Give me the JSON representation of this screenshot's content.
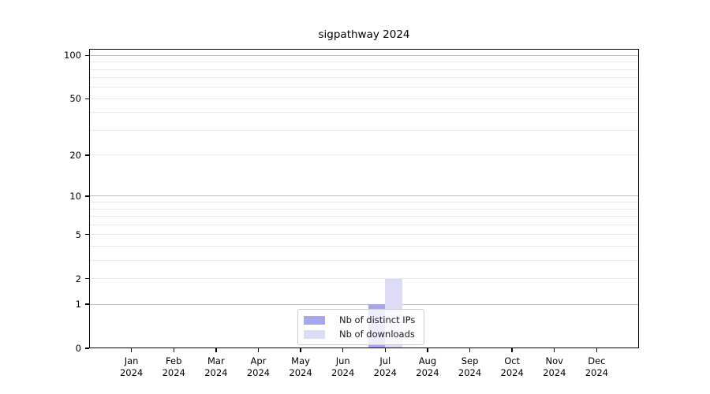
{
  "title": "sigpathway 2024",
  "chart_data": {
    "type": "bar",
    "title": "sigpathway 2024",
    "categories": [
      "Jan",
      "Feb",
      "Mar",
      "Apr",
      "May",
      "Jun",
      "Jul",
      "Aug",
      "Sep",
      "Oct",
      "Nov",
      "Dec"
    ],
    "category_year": "2024",
    "series": [
      {
        "name": "Nb of distinct IPs",
        "color": "#a7a7ee",
        "values": [
          0,
          0,
          0,
          0,
          0,
          0,
          1,
          0,
          0,
          0,
          0,
          0
        ]
      },
      {
        "name": "Nb of downloads",
        "color": "#dcdcf7",
        "values": [
          0,
          0,
          0,
          0,
          0,
          0,
          2,
          0,
          0,
          0,
          0,
          0
        ]
      }
    ],
    "yscale": "log1p",
    "ylim": [
      0,
      111
    ],
    "ymax": 111,
    "yticks_labeled": [
      0,
      1,
      2,
      5,
      10,
      20,
      50,
      100
    ],
    "grid_major_at": [
      1,
      10,
      100
    ],
    "grid_minor_at": [
      2,
      3,
      4,
      5,
      6,
      7,
      8,
      9,
      20,
      30,
      40,
      50,
      60,
      70,
      80,
      90
    ],
    "grid": "horizontal",
    "legend_position": "bottom-center",
    "colors": {
      "bar_distinct_ips": "#a7a7ee",
      "bar_downloads": "#dcdcf7",
      "grid_major": "#bbbbbb",
      "grid_minor": "#e9e9e9",
      "axis": "#000000",
      "legend_border": "#cccccc",
      "text": "#000000"
    }
  }
}
